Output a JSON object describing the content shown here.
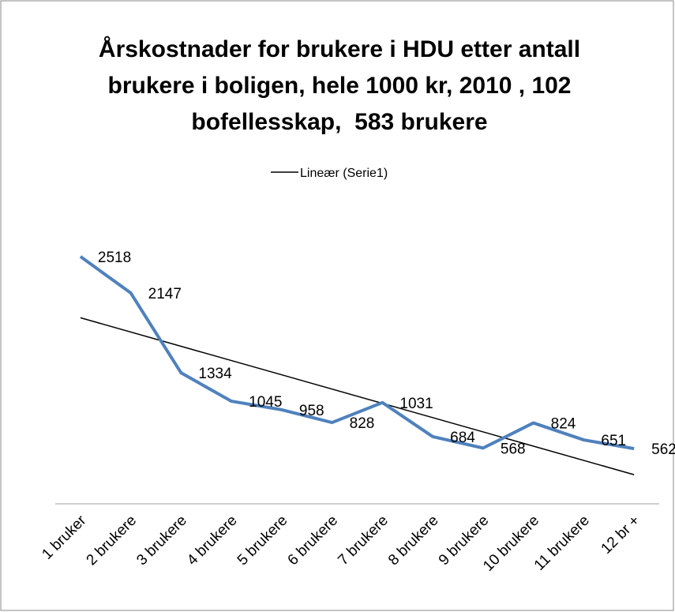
{
  "chart_data": {
    "type": "line",
    "title": [
      "Årskostnader for brukere i HDU etter antall",
      "brukere i boligen, hele 1000 kr, 2010 , 102",
      "bofellesskap,  583 brukere"
    ],
    "categories": [
      "1 bruker",
      "2 brukere",
      "3 brukere",
      "4 brukere",
      "5 brukere",
      "6 brukere",
      "7 brukere",
      "8 brukere",
      "9 brukere",
      "10 brukere",
      "11 brukere",
      "12 br +"
    ],
    "series": [
      {
        "color": "#4f81bd",
        "values": [
          2518,
          2147,
          1334,
          1045,
          958,
          828,
          1031,
          684,
          568,
          824,
          651,
          562
        ]
      }
    ],
    "trendline": {
      "name": "Lineær (Serie1)",
      "color": "#000000",
      "kind": "linear"
    },
    "ylim": [
      0,
      3000
    ]
  }
}
